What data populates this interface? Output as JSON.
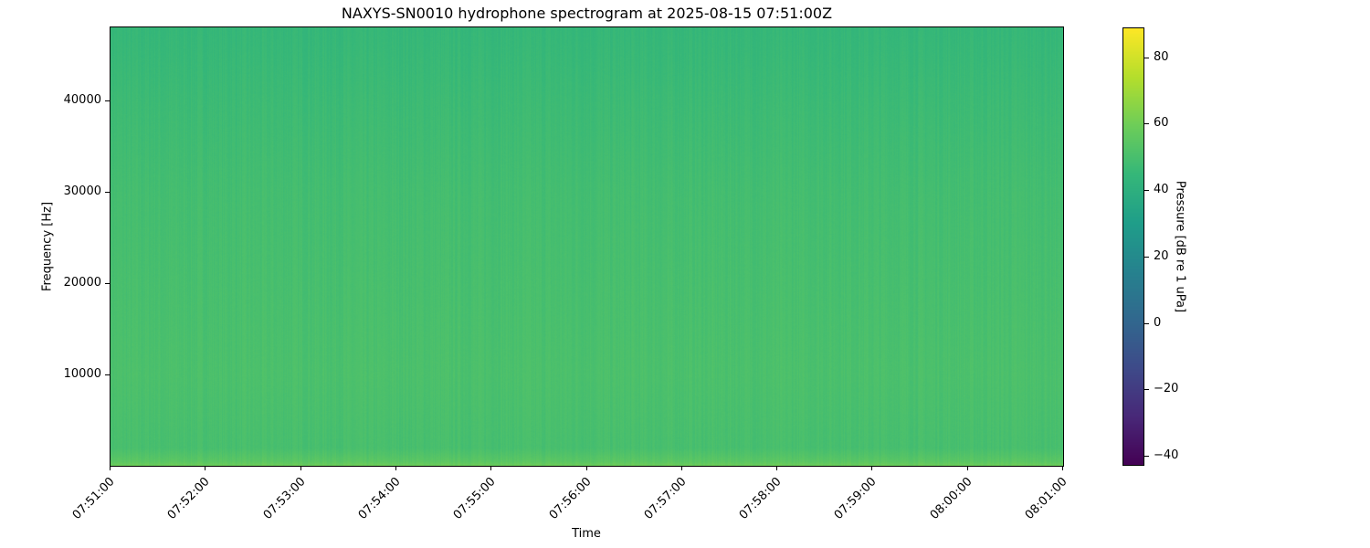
{
  "chart_data": {
    "type": "heatmap",
    "title": "NAXYS-SN0010 hydrophone spectrogram at 2025-08-15 07:51:00Z",
    "xlabel": "Time",
    "ylabel": "Frequency [Hz]",
    "colorbar_label": "Pressure [dB re 1 uPa]",
    "colormap": "viridis",
    "x_ticks": [
      "07:51:00",
      "07:52:00",
      "07:53:00",
      "07:54:00",
      "07:55:00",
      "07:56:00",
      "07:57:00",
      "07:58:00",
      "07:59:00",
      "08:00:00",
      "08:01:00"
    ],
    "xlim": [
      "07:51:00",
      "08:01:00"
    ],
    "y_ticks": [
      10000,
      20000,
      30000,
      40000
    ],
    "ylim": [
      0,
      48000
    ],
    "colorbar_ticks": [
      -40,
      -20,
      0,
      20,
      40,
      60,
      80
    ],
    "clim": [
      -43,
      89
    ],
    "grid": false,
    "band_profile_db": {
      "frequency_hz": [
        0,
        500,
        2000,
        10000,
        20000,
        30000,
        40000,
        48000
      ],
      "level_db": [
        60,
        55,
        50,
        51,
        50,
        49,
        47,
        45
      ]
    }
  }
}
